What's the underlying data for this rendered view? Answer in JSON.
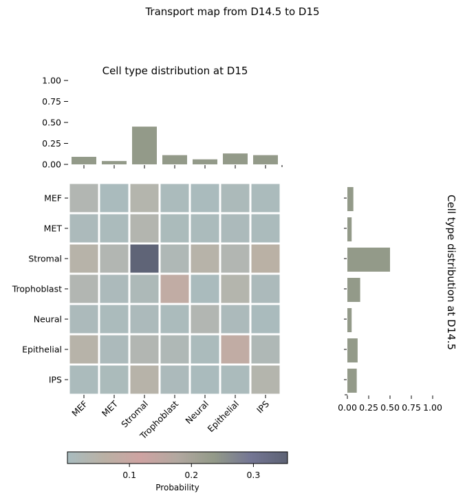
{
  "figure": {
    "suptitle": "Transport map from D14.5 to D15"
  },
  "chart_data": [
    {
      "type": "heatmap",
      "title": "",
      "x_categories": [
        "MEF",
        "MET",
        "Stromal",
        "Trophoblast",
        "Neural",
        "Epithelial",
        "IPS"
      ],
      "y_categories": [
        "MEF",
        "MET",
        "Stromal",
        "Trophoblast",
        "Neural",
        "Epithelial",
        "IPS"
      ],
      "values": [
        [
          0.03,
          0.004,
          0.04,
          0.007,
          0.005,
          0.012,
          0.007
        ],
        [
          0.01,
          0.006,
          0.036,
          0.008,
          0.006,
          0.01,
          0.006
        ],
        [
          0.05,
          0.03,
          0.35,
          0.02,
          0.05,
          0.03,
          0.06
        ],
        [
          0.03,
          0.01,
          0.015,
          0.08,
          0.005,
          0.04,
          0.01
        ],
        [
          0.01,
          0.006,
          0.01,
          0.006,
          0.03,
          0.01,
          0.005
        ],
        [
          0.05,
          0.01,
          0.03,
          0.02,
          0.006,
          0.08,
          0.02
        ],
        [
          0.006,
          0.008,
          0.05,
          0.01,
          0.004,
          0.006,
          0.04
        ]
      ],
      "colorbar": {
        "label": "Probability",
        "ticks": [
          "0.1",
          "0.2",
          "0.3"
        ],
        "tick_values": [
          0.1,
          0.2,
          0.3
        ],
        "vmin": 0.0,
        "vmax": 0.355,
        "colors": [
          "#a9bcbf",
          "#bab1a5",
          "#cea3a2",
          "#b2a8a0",
          "#939a89",
          "#747694",
          "#5d6274"
        ]
      }
    },
    {
      "type": "bar",
      "title": "Cell type distribution at D15",
      "categories": [
        "MEF",
        "MET",
        "Stromal",
        "Trophoblast",
        "Neural",
        "Epithelial",
        "IPS"
      ],
      "values": [
        0.09,
        0.04,
        0.45,
        0.11,
        0.06,
        0.13,
        0.11
      ],
      "ylim": [
        0,
        1.0
      ],
      "yticks": [
        "0.00",
        "0.25",
        "0.50",
        "0.75",
        "1.00"
      ],
      "ytick_values": [
        0,
        0.25,
        0.5,
        0.75,
        1.0
      ],
      "bar_color": "#939a89"
    },
    {
      "type": "bar",
      "orientation": "horizontal",
      "title": "Cell type distribution at D14.5",
      "categories": [
        "MEF",
        "MET",
        "Stromal",
        "Trophoblast",
        "Neural",
        "Epithelial",
        "IPS"
      ],
      "values": [
        0.07,
        0.05,
        0.5,
        0.15,
        0.05,
        0.12,
        0.11
      ],
      "xlim": [
        0,
        1.0
      ],
      "xticks": [
        "0.00",
        "0.25",
        "0.50",
        "0.75",
        "1.00"
      ],
      "xtick_values": [
        0,
        0.25,
        0.5,
        0.75,
        1.0
      ],
      "bar_color": "#939a89"
    }
  ]
}
